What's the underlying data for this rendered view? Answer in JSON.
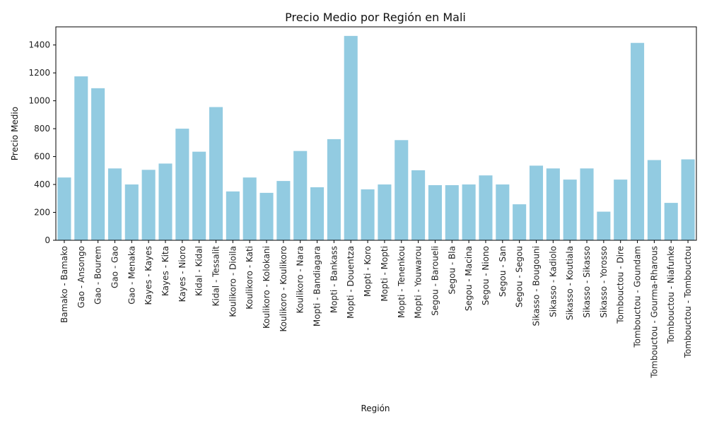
{
  "chart_data": {
    "type": "bar",
    "title": "Precio Medio por Región en Mali",
    "xlabel": "Región",
    "ylabel": "Precio Medio",
    "ylim": [
      0,
      1530
    ],
    "yticks": [
      0,
      200,
      400,
      600,
      800,
      1000,
      1200,
      1400
    ],
    "grid": false,
    "colors": {
      "bar": "#92CBE1",
      "axis": "#000000",
      "text": "#222222"
    },
    "categories": [
      "Bamako - Bamako",
      "Gao - Ansongo",
      "Gao - Bourem",
      "Gao - Gao",
      "Gao - Menaka",
      "Kayes - Kayes",
      "Kayes - Kita",
      "Kayes - Nioro",
      "Kidal - Kidal",
      "Kidal - Tessalit",
      "Koulikoro - Dioila",
      "Koulikoro - Kati",
      "Koulikoro - Kolokani",
      "Koulikoro - Koulikoro",
      "Koulikoro - Nara",
      "Mopti - Bandiagara",
      "Mopti - Bankass",
      "Mopti - Douentza",
      "Mopti - Koro",
      "Mopti - Mopti",
      "Mopti - Tenenkou",
      "Mopti - Youwarou",
      "Segou - Baroueli",
      "Segou - Bla",
      "Segou - Macina",
      "Segou - Niono",
      "Segou - San",
      "Segou - Segou",
      "Sikasso - Bougouni",
      "Sikasso - Kadiolo",
      "Sikasso - Koutiala",
      "Sikasso - Sikasso",
      "Sikasso - Yorosso",
      "Tombouctou - Dire",
      "Tombouctou - Goundam",
      "Tombouctou - Gourma-Rharous",
      "Tombouctou - Niafunke",
      "Tombouctou - Tombouctou"
    ],
    "values": [
      450,
      1175,
      1090,
      515,
      400,
      505,
      550,
      800,
      635,
      955,
      350,
      450,
      340,
      425,
      640,
      380,
      725,
      1465,
      365,
      400,
      718,
      502,
      395,
      395,
      400,
      465,
      400,
      258,
      535,
      515,
      435,
      515,
      205,
      435,
      1415,
      575,
      268,
      580
    ]
  }
}
